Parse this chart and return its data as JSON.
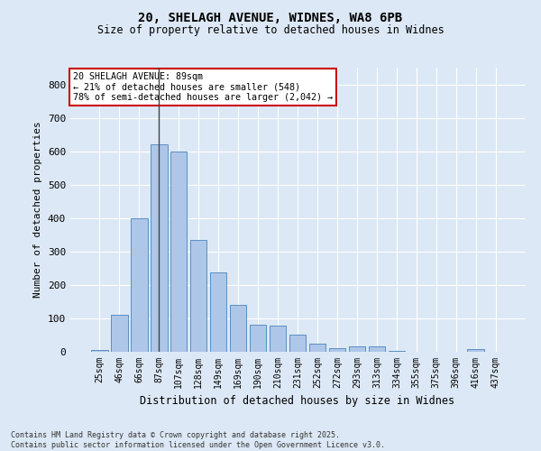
{
  "title_line1": "20, SHELAGH AVENUE, WIDNES, WA8 6PB",
  "title_line2": "Size of property relative to detached houses in Widnes",
  "xlabel": "Distribution of detached houses by size in Widnes",
  "ylabel": "Number of detached properties",
  "categories": [
    "25sqm",
    "46sqm",
    "66sqm",
    "87sqm",
    "107sqm",
    "128sqm",
    "149sqm",
    "169sqm",
    "190sqm",
    "210sqm",
    "231sqm",
    "252sqm",
    "272sqm",
    "293sqm",
    "313sqm",
    "334sqm",
    "355sqm",
    "375sqm",
    "396sqm",
    "416sqm",
    "437sqm"
  ],
  "values": [
    5,
    110,
    400,
    620,
    600,
    335,
    238,
    140,
    80,
    78,
    50,
    25,
    12,
    16,
    16,
    3,
    0,
    0,
    0,
    8,
    0
  ],
  "bar_color": "#aec6e8",
  "bar_edge_color": "#5a8fc2",
  "highlight_index": 3,
  "annotation_box_text": "20 SHELAGH AVENUE: 89sqm\n← 21% of detached houses are smaller (548)\n78% of semi-detached houses are larger (2,042) →",
  "annotation_box_color": "#ffffff",
  "annotation_box_edge_color": "#cc0000",
  "background_color": "#dce8f5",
  "grid_color": "#ffffff",
  "ylim": [
    0,
    850
  ],
  "yticks": [
    0,
    100,
    200,
    300,
    400,
    500,
    600,
    700,
    800
  ],
  "footer_line1": "Contains HM Land Registry data © Crown copyright and database right 2025.",
  "footer_line2": "Contains public sector information licensed under the Open Government Licence v3.0."
}
